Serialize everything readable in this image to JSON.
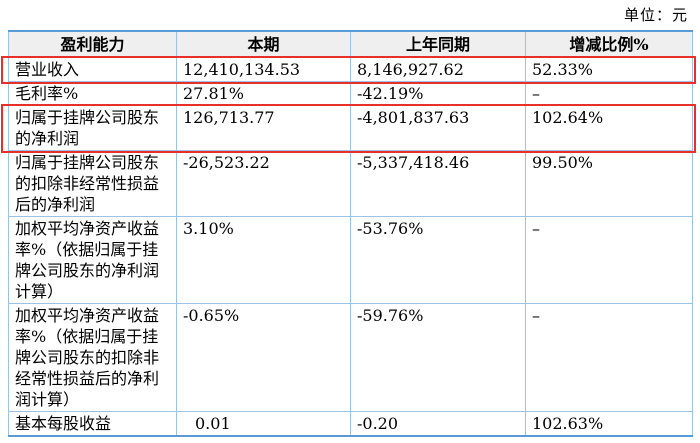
{
  "unit_label": "单位：元",
  "colors": {
    "highlight_red": "#e8302a",
    "border_blue_outer": "#5b9bd5",
    "border_blue_inner": "#9cc2e5",
    "header_bg": "#efefef"
  },
  "table": {
    "headers": [
      "盈利能力",
      "本期",
      "上年同期",
      "增减比例%"
    ],
    "rows": [
      {
        "label": "营业收入",
        "current": "12,410,134.53",
        "prior": "8,146,927.62",
        "change": "52.33%",
        "highlight": true
      },
      {
        "label": "毛利率%",
        "current": "27.81%",
        "prior": "-42.19%",
        "change": "–",
        "highlight": false
      },
      {
        "label": "归属于挂牌公司股东的净利润",
        "current": "126,713.77",
        "prior": "-4,801,837.63",
        "change": "102.64%",
        "highlight": true
      },
      {
        "label": "归属于挂牌公司股东的扣除非经常性损益后的净利润",
        "current": "-26,523.22",
        "prior": "-5,337,418.46",
        "change": "99.50%",
        "highlight": false
      },
      {
        "label": "加权平均净资产收益率%（依据归属于挂牌公司股东的净利润计算）",
        "current": "3.10%",
        "prior": "-53.76%",
        "change": "–",
        "highlight": false
      },
      {
        "label": "加权平均净资产收益率%（依据归属于挂牌公司股东的扣除非经常性损益后的净利润计算）",
        "current": "-0.65%",
        "prior": "-59.76%",
        "change": "–",
        "highlight": false
      },
      {
        "label": "基本每股收益",
        "current": "0.01",
        "prior": "-0.20",
        "change": "102.63%",
        "highlight": false
      }
    ]
  }
}
